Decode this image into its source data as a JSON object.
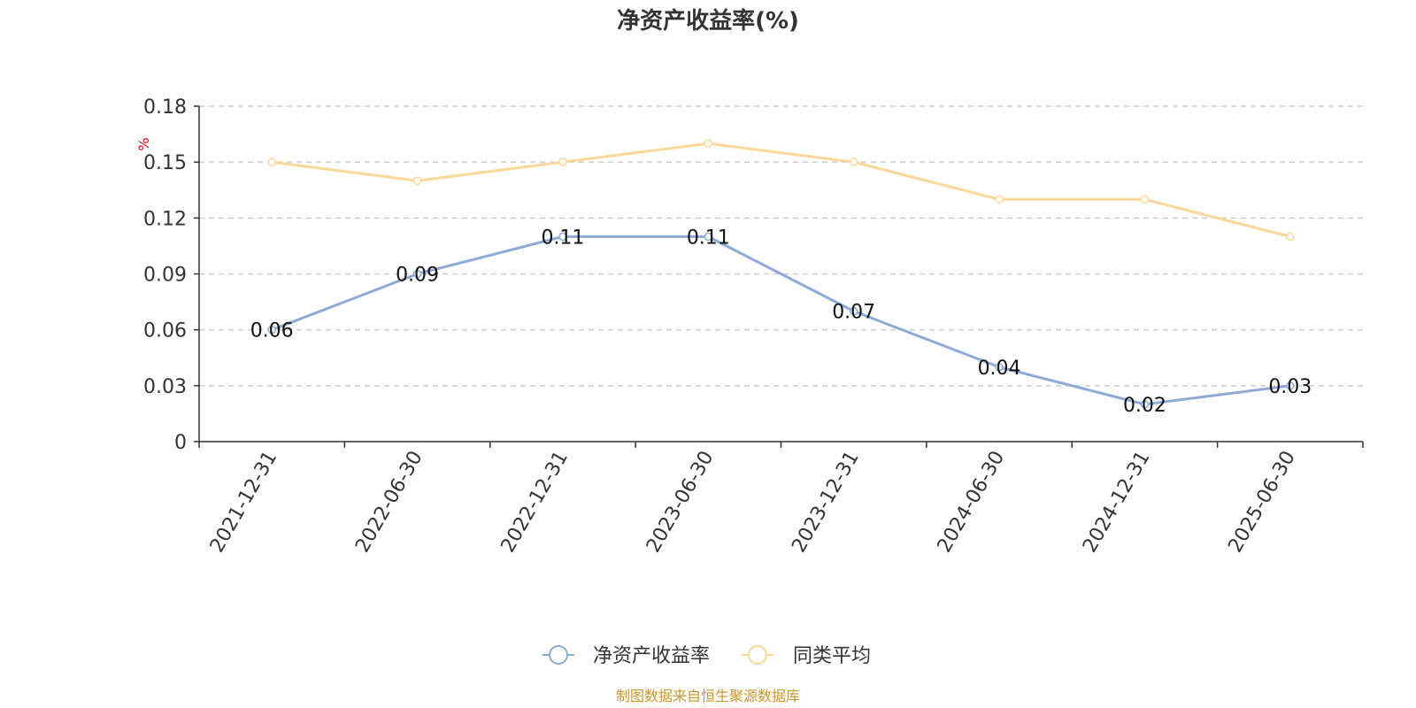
{
  "chart_data": {
    "type": "line",
    "title": "净资产收益率(%)",
    "unit": "%",
    "categories": [
      "2021-12-31",
      "2022-06-30",
      "2022-12-31",
      "2023-06-30",
      "2023-12-31",
      "2024-06-30",
      "2024-12-31",
      "2025-06-30"
    ],
    "y_ticks": [
      "0",
      "0.03",
      "0.06",
      "0.09",
      "0.12",
      "0.15",
      "0.18"
    ],
    "ylim": [
      0,
      0.18
    ],
    "grid": true,
    "legend_position": "bottom-center",
    "series": [
      {
        "name": "净资产收益率",
        "color": "#8eaad6",
        "values": [
          0.06,
          0.09,
          0.11,
          0.11,
          0.07,
          0.04,
          0.02,
          0.03
        ],
        "labels": [
          "0.06",
          "0.09",
          "0.11",
          "0.11",
          "0.07",
          "0.04",
          "0.02",
          "0.03"
        ],
        "show_labels": true
      },
      {
        "name": "同类平均",
        "color": "#fbd89a",
        "values": [
          0.15,
          0.14,
          0.15,
          0.16,
          0.15,
          0.13,
          0.13,
          0.11
        ],
        "show_labels": false
      }
    ],
    "source": "制图数据来自恒生聚源数据库"
  }
}
